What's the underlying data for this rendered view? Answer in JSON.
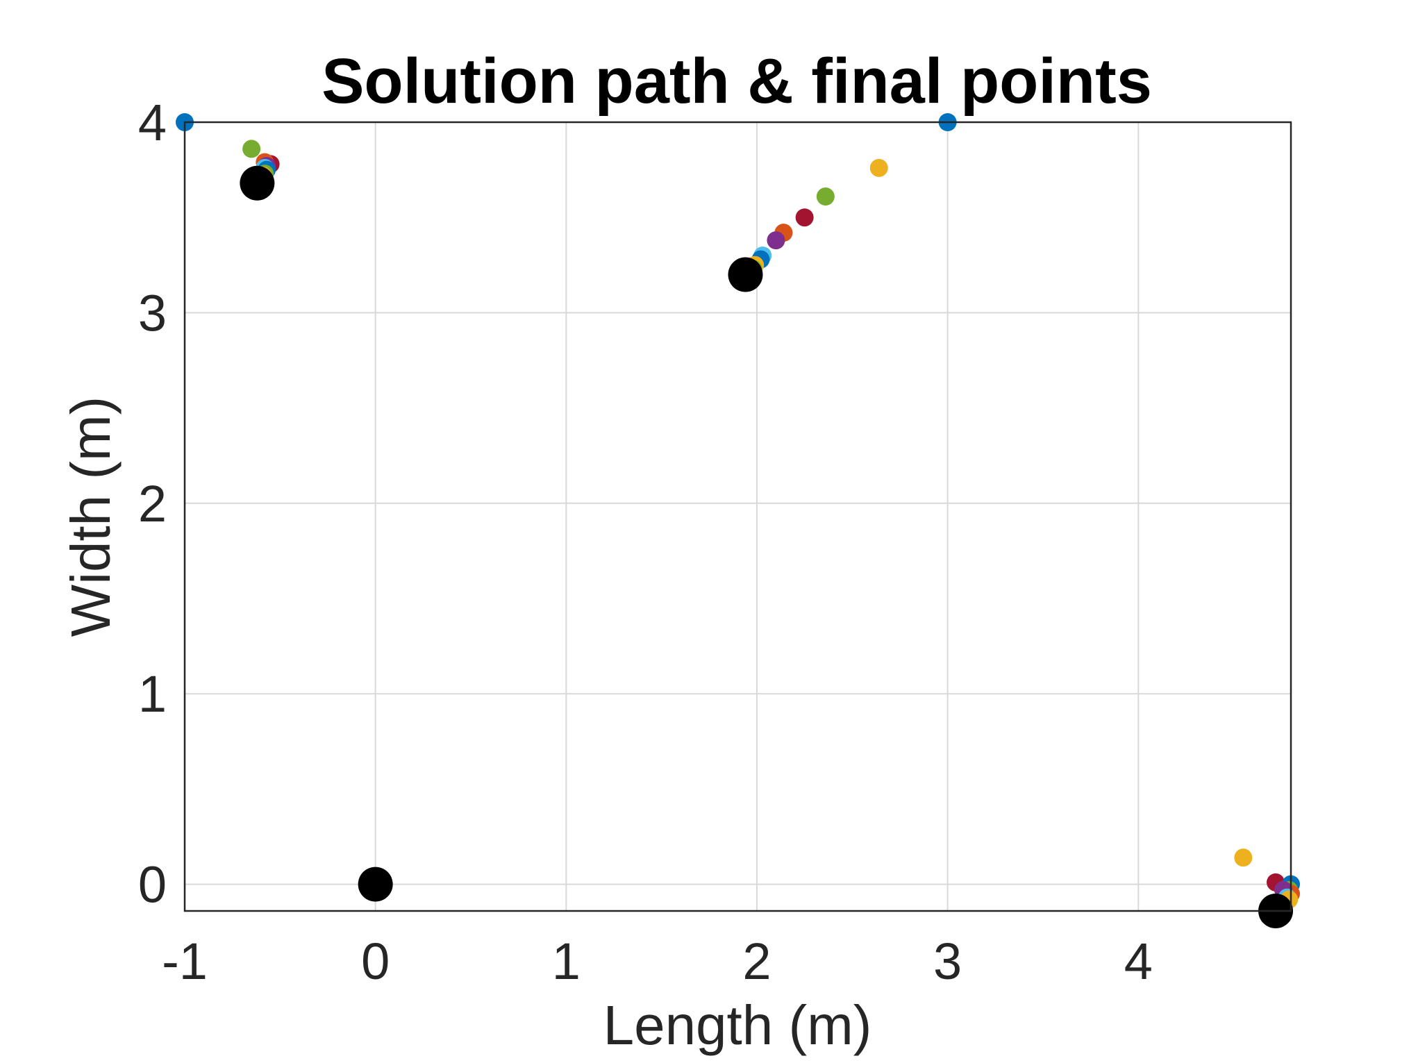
{
  "chart_data": {
    "type": "scatter",
    "title": "Solution path & final points",
    "xlabel": "Length (m)",
    "ylabel": "Width (m)",
    "xlim": [
      -1,
      4.8
    ],
    "ylim": [
      -0.14,
      4
    ],
    "xticks": [
      -1,
      0,
      1,
      2,
      3,
      4
    ],
    "yticks": [
      0,
      1,
      2,
      3,
      4
    ],
    "xtick_labels": [
      "-1",
      "0",
      "1",
      "2",
      "3",
      "4"
    ],
    "ytick_labels": [
      "0",
      "1",
      "2",
      "3",
      "4"
    ],
    "grid": true,
    "legend": "none",
    "path_points": [
      {
        "x": -1.0,
        "y": 4.0,
        "color": "#0072BD"
      },
      {
        "x": -0.65,
        "y": 3.86,
        "color": "#77AC30"
      },
      {
        "x": -0.55,
        "y": 3.78,
        "color": "#A2142F"
      },
      {
        "x": -0.58,
        "y": 3.79,
        "color": "#D95319"
      },
      {
        "x": -0.57,
        "y": 3.77,
        "color": "#7E2F8E"
      },
      {
        "x": -0.58,
        "y": 3.76,
        "color": "#4DBEEE"
      },
      {
        "x": -0.57,
        "y": 3.75,
        "color": "#0072BD"
      },
      {
        "x": -0.58,
        "y": 3.73,
        "color": "#77AC30"
      },
      {
        "x": -0.59,
        "y": 3.72,
        "color": "#EDB120"
      },
      {
        "x": 3.0,
        "y": 4.0,
        "color": "#0072BD"
      },
      {
        "x": 2.64,
        "y": 3.76,
        "color": "#EDB120"
      },
      {
        "x": 2.36,
        "y": 3.61,
        "color": "#77AC30"
      },
      {
        "x": 2.25,
        "y": 3.5,
        "color": "#A2142F"
      },
      {
        "x": 2.14,
        "y": 3.42,
        "color": "#D95319"
      },
      {
        "x": 2.1,
        "y": 3.38,
        "color": "#7E2F8E"
      },
      {
        "x": 2.03,
        "y": 3.3,
        "color": "#4DBEEE"
      },
      {
        "x": 2.02,
        "y": 3.28,
        "color": "#0072BD"
      },
      {
        "x": 1.99,
        "y": 3.25,
        "color": "#EDB120"
      },
      {
        "x": 1.98,
        "y": 3.23,
        "color": "#77AC30"
      },
      {
        "x": 4.55,
        "y": 0.14,
        "color": "#EDB120"
      },
      {
        "x": 4.72,
        "y": 0.01,
        "color": "#A2142F"
      },
      {
        "x": 4.8,
        "y": 0.0,
        "color": "#0072BD"
      },
      {
        "x": 4.79,
        "y": -0.03,
        "color": "#77AC30"
      },
      {
        "x": 4.8,
        "y": -0.05,
        "color": "#D95319"
      },
      {
        "x": 4.76,
        "y": -0.03,
        "color": "#7E2F8E"
      },
      {
        "x": 4.78,
        "y": -0.07,
        "color": "#4DBEEE"
      },
      {
        "x": 4.79,
        "y": -0.08,
        "color": "#EDB120"
      }
    ],
    "final_points": [
      {
        "x": 0.0,
        "y": 0.0
      },
      {
        "x": -0.62,
        "y": 3.68
      },
      {
        "x": 1.94,
        "y": 3.2
      },
      {
        "x": 4.72,
        "y": -0.14
      }
    ],
    "final_color": "#000000"
  }
}
